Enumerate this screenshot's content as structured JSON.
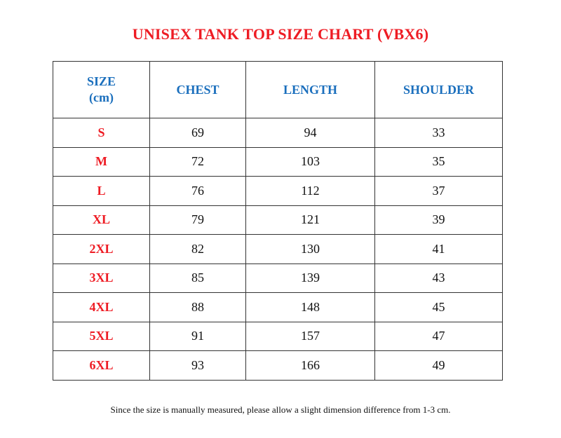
{
  "title": "UNISEX TANK TOP SIZE CHART (VBX6)",
  "table": {
    "headers": {
      "size_line1": "SIZE",
      "size_line2": "(cm)",
      "chest": "CHEST",
      "length": "LENGTH",
      "shoulder": "SHOULDER"
    },
    "rows": [
      {
        "size": "S",
        "chest": "69",
        "length": "94",
        "shoulder": "33"
      },
      {
        "size": "M",
        "chest": "72",
        "length": "103",
        "shoulder": "35"
      },
      {
        "size": "L",
        "chest": "76",
        "length": "112",
        "shoulder": "37"
      },
      {
        "size": "XL",
        "chest": "79",
        "length": "121",
        "shoulder": "39"
      },
      {
        "size": "2XL",
        "chest": "82",
        "length": "130",
        "shoulder": "41"
      },
      {
        "size": "3XL",
        "chest": "85",
        "length": "139",
        "shoulder": "43"
      },
      {
        "size": "4XL",
        "chest": "88",
        "length": "148",
        "shoulder": "45"
      },
      {
        "size": "5XL",
        "chest": "91",
        "length": "157",
        "shoulder": "47"
      },
      {
        "size": "6XL",
        "chest": "93",
        "length": "166",
        "shoulder": "49"
      }
    ]
  },
  "note": "Since the size is manually measured, please allow a slight dimension difference from 1-3 cm.",
  "colors": {
    "title": "#ee1c24",
    "header": "#1b6fbd",
    "size_label": "#ee1c24"
  }
}
